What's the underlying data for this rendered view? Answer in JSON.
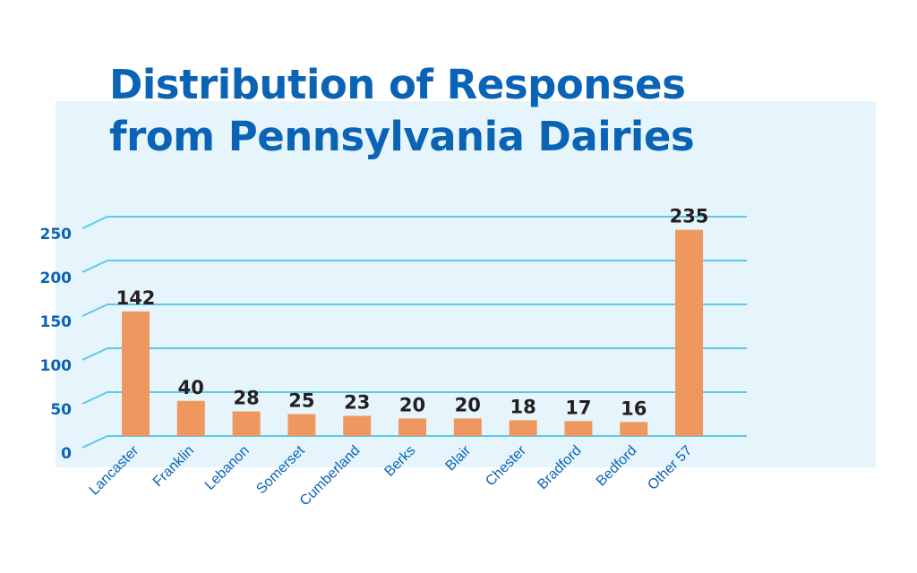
{
  "colors": {
    "bar": "#ee985f",
    "axis_text": "#0a63b5",
    "grid": "#5cc8ec",
    "panel": "#e6f5fc",
    "data_label": "#231f20"
  },
  "chart_data": {
    "type": "bar",
    "title": [
      "Distribution of Responses",
      "from Pennsylvania Dairies"
    ],
    "categories": [
      "Lancaster",
      "Franklin",
      "Lebanon",
      "Somerset",
      "Cumberland",
      "Berks",
      "Blair",
      "Chester",
      "Bradford",
      "Bedford",
      "Other 57"
    ],
    "values": [
      142,
      40,
      28,
      25,
      23,
      20,
      20,
      18,
      17,
      16,
      235
    ],
    "data_labels": [
      "142",
      "40",
      "28",
      "25",
      "23",
      "20",
      "20",
      "18",
      "17",
      "16",
      "235"
    ],
    "yticks": [
      0,
      50,
      100,
      150,
      200,
      250
    ],
    "ylim": [
      0,
      250
    ],
    "xlabel": "",
    "ylabel": "",
    "grid": true,
    "legend": false
  }
}
